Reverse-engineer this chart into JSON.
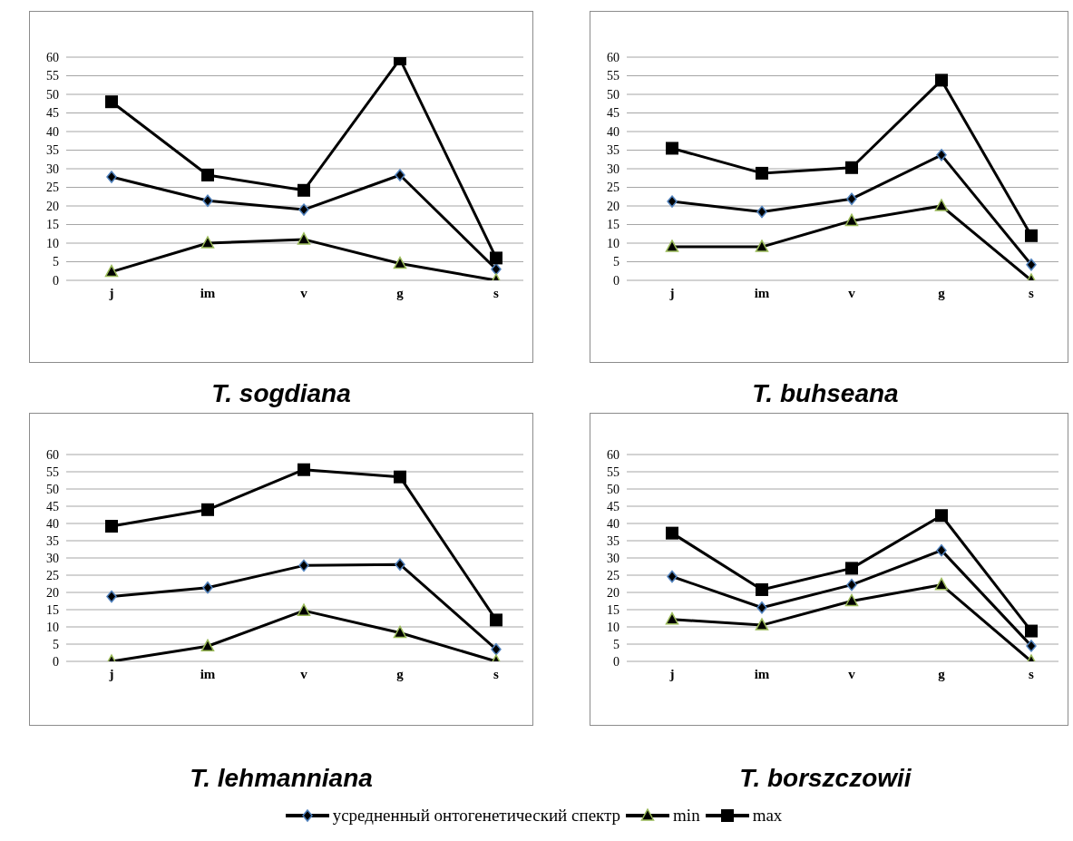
{
  "chart_data": [
    {
      "type": "line",
      "title": "T. sogdiana",
      "categories": [
        "j",
        "im",
        "v",
        "g",
        "s"
      ],
      "ylim": [
        0,
        60
      ],
      "yticks": [
        0,
        5,
        10,
        15,
        20,
        25,
        30,
        35,
        40,
        45,
        50,
        55,
        60
      ],
      "grid": "y",
      "legend": false,
      "series": [
        {
          "color": "#000000",
          "marker": "diamond",
          "values": [
            27.8,
            21.4,
            19,
            28.3,
            3
          ]
        },
        {
          "color": "#000000",
          "marker": "triangle",
          "values": [
            2.3,
            10,
            11,
            4.5,
            0
          ]
        },
        {
          "color": "#000000",
          "marker": "square",
          "values": [
            48,
            28.3,
            24.2,
            59.5,
            6
          ]
        }
      ]
    },
    {
      "type": "line",
      "title": "T. buhseana",
      "categories": [
        "j",
        "im",
        "v",
        "g",
        "s"
      ],
      "ylim": [
        0,
        60
      ],
      "yticks": [
        0,
        5,
        10,
        15,
        20,
        25,
        30,
        35,
        40,
        45,
        50,
        55,
        60
      ],
      "grid": "y",
      "legend": false,
      "series": [
        {
          "color": "#000000",
          "marker": "diamond",
          "values": [
            21.2,
            18.4,
            21.9,
            33.7,
            4.2
          ]
        },
        {
          "color": "#000000",
          "marker": "triangle",
          "values": [
            9,
            9,
            16,
            20,
            0
          ]
        },
        {
          "color": "#000000",
          "marker": "square",
          "values": [
            35.5,
            28.8,
            30.3,
            53.8,
            12
          ]
        }
      ]
    },
    {
      "type": "line",
      "title": "T. lehmanniana",
      "categories": [
        "j",
        "im",
        "v",
        "g",
        "s"
      ],
      "ylim": [
        0,
        60
      ],
      "yticks": [
        0,
        5,
        10,
        15,
        20,
        25,
        30,
        35,
        40,
        45,
        50,
        55,
        60
      ],
      "grid": "y",
      "legend": false,
      "series": [
        {
          "color": "#000000",
          "marker": "diamond",
          "values": [
            18.8,
            21.4,
            27.8,
            28.1,
            3.5
          ]
        },
        {
          "color": "#000000",
          "marker": "triangle",
          "values": [
            0,
            4.4,
            14.7,
            8.3,
            0
          ]
        },
        {
          "color": "#000000",
          "marker": "square",
          "values": [
            39.2,
            44,
            55.6,
            53.5,
            12
          ]
        }
      ]
    },
    {
      "type": "line",
      "title": "T. borszczowii",
      "categories": [
        "j",
        "im",
        "v",
        "g",
        "s"
      ],
      "ylim": [
        0,
        60
      ],
      "yticks": [
        0,
        5,
        10,
        15,
        20,
        25,
        30,
        35,
        40,
        45,
        50,
        55,
        60
      ],
      "grid": "y",
      "legend": "bottom",
      "series": [
        {
          "name": "усредненный онтогенетический спектр",
          "color": "#000000",
          "marker": "diamond",
          "values": [
            24.6,
            15.6,
            22.2,
            32.2,
            4.5
          ]
        },
        {
          "name": "min",
          "color": "#000000",
          "marker": "triangle",
          "values": [
            12.2,
            10.5,
            17.5,
            22.2,
            0
          ]
        },
        {
          "name": "max",
          "color": "#000000",
          "marker": "square",
          "values": [
            37.2,
            20.8,
            27,
            42.3,
            8.8
          ]
        }
      ]
    }
  ]
}
